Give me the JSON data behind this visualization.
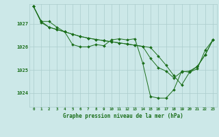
{
  "background_color": "#cce8e8",
  "grid_color": "#aacccc",
  "line_color": "#1a6e1a",
  "title": "Graphe pression niveau de la mer (hPa)",
  "xlabel_hours": [
    0,
    1,
    2,
    3,
    4,
    5,
    6,
    7,
    8,
    9,
    10,
    11,
    12,
    13,
    14,
    15,
    16,
    17,
    18,
    19,
    20,
    21,
    22,
    23
  ],
  "yticks": [
    1024,
    1025,
    1026,
    1027
  ],
  "ylim": [
    1023.4,
    1027.85
  ],
  "xlim": [
    -0.5,
    23.5
  ],
  "series": [
    [
      1027.75,
      1027.1,
      1027.1,
      1026.85,
      1026.65,
      1026.1,
      1026.0,
      1026.0,
      1026.1,
      1026.05,
      1026.3,
      1026.35,
      1026.3,
      1026.35,
      1025.3,
      1023.85,
      1023.78,
      1023.78,
      1024.15,
      1024.95,
      1024.9,
      1025.05,
      1025.85,
      1026.3
    ],
    [
      1027.75,
      1027.1,
      1026.85,
      1026.75,
      1026.65,
      1026.55,
      1026.45,
      1026.38,
      1026.32,
      1026.27,
      1026.22,
      1026.17,
      1026.12,
      1026.07,
      1026.02,
      1025.97,
      1025.6,
      1025.2,
      1024.75,
      1024.35,
      1024.9,
      1025.15,
      1025.65,
      1026.3
    ],
    [
      1027.75,
      1027.05,
      1026.85,
      1026.75,
      1026.65,
      1026.55,
      1026.45,
      1026.38,
      1026.32,
      1026.27,
      1026.22,
      1026.17,
      1026.12,
      1026.07,
      1026.02,
      1025.5,
      1025.1,
      1024.95,
      1024.65,
      1024.92,
      1024.95,
      1025.15,
      1025.65,
      1026.3
    ]
  ]
}
